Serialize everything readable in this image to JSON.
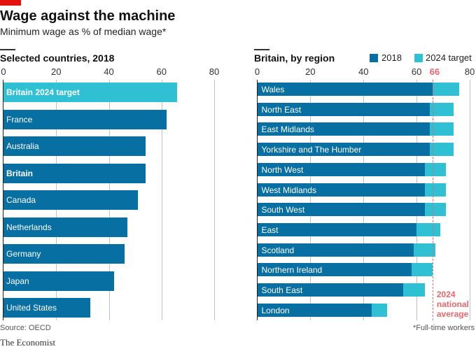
{
  "title": "Wage against the machine",
  "subtitle": "Minimum wage as % of median wage*",
  "colors": {
    "dark": "#076fa1",
    "light": "#2fc1d3",
    "red": "#e3120b",
    "reference": "#e6686b"
  },
  "source": "Source: OECD",
  "footnote": "*Full-time workers",
  "brand": "The Economist",
  "chart_data": [
    {
      "type": "bar",
      "orientation": "horizontal",
      "title": "Selected countries, 2018",
      "xlim": [
        0,
        80
      ],
      "ticks": [
        0,
        20,
        40,
        60,
        80
      ],
      "grid": true,
      "categories": [
        "Britain 2024 target",
        "France",
        "Australia",
        "Britain",
        "Canada",
        "Netherlands",
        "Germany",
        "Japan",
        "United States"
      ],
      "bold": [
        "Britain 2024 target",
        "Britain"
      ],
      "values": [
        66,
        62,
        54,
        54,
        51,
        47,
        46,
        42,
        33
      ],
      "highlight": "Britain 2024 target"
    },
    {
      "type": "bar",
      "orientation": "horizontal",
      "stacked": "overlay",
      "title": "Britain, by region",
      "xlim": [
        0,
        80
      ],
      "ticks": [
        0,
        20,
        40,
        60,
        80
      ],
      "grid": true,
      "legend": "top-right",
      "categories": [
        "Wales",
        "North East",
        "East Midlands",
        "Yorkshire and The Humber",
        "North West",
        "West Midlands",
        "South West",
        "East",
        "Scotland",
        "Northern Ireland",
        "South East",
        "London"
      ],
      "series": [
        {
          "name": "2018",
          "values": [
            66,
            65,
            65,
            65,
            63,
            63,
            63,
            60,
            59,
            58,
            55,
            43
          ]
        },
        {
          "name": "2024 target",
          "values": [
            76,
            74,
            74,
            74,
            71,
            71,
            71,
            69,
            67,
            66,
            63,
            49
          ]
        }
      ],
      "reference": {
        "value": 66,
        "label_tick": "66",
        "label_lines": [
          "2024",
          "national",
          "average"
        ]
      }
    }
  ]
}
